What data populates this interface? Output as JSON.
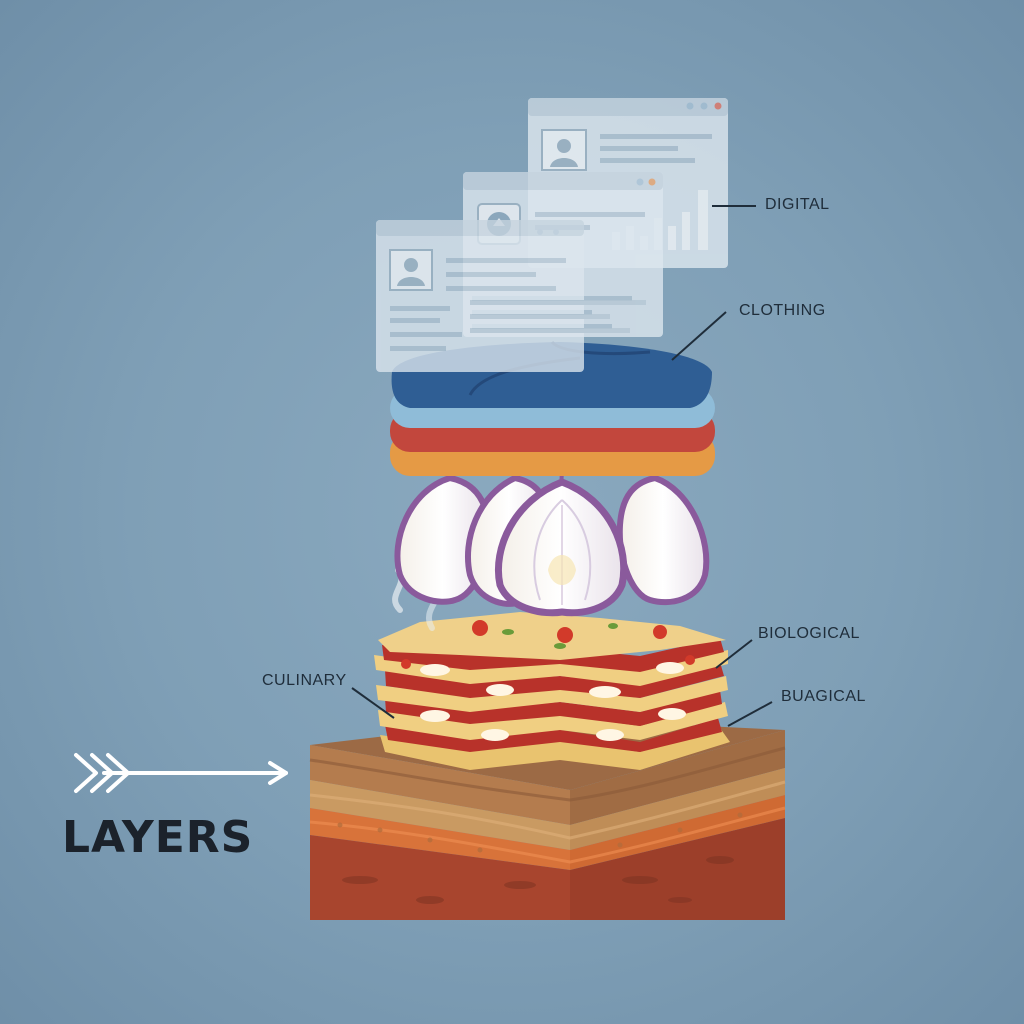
{
  "title": "LAYERS",
  "labels": {
    "digital": "DIGITAL",
    "clothing": "CLOTHING",
    "biological": "BIOLOGICAL",
    "buagical": "BUAGICAL",
    "culinary": "CULINARY"
  },
  "colors": {
    "background": "#7f9fb6",
    "cloth_blue": "#2f5e94",
    "cloth_light_blue": "#8fbcd8",
    "cloth_red": "#c2473d",
    "cloth_orange": "#e59a45",
    "soil_dark": "#a8452e",
    "soil_orange": "#d8733a",
    "soil_tan": "#c99a62",
    "soil_brown": "#a8744a"
  },
  "icons": [
    "arrow-right-icon",
    "profile-icon",
    "chart-icon",
    "upload-icon"
  ]
}
